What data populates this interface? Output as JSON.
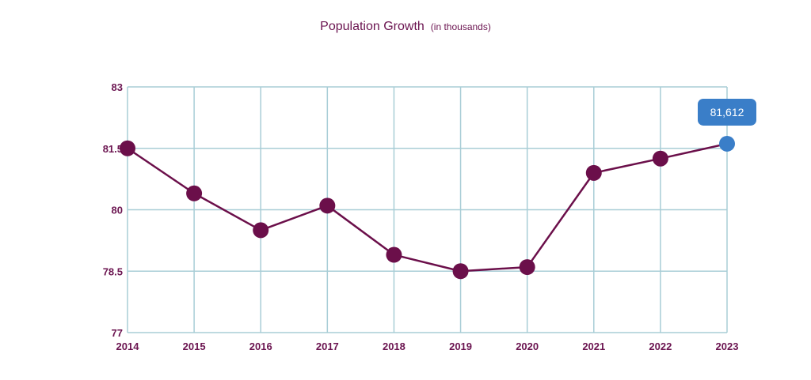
{
  "chart_data": {
    "type": "line",
    "title": "Population Growth",
    "subtitle": "(in thousands)",
    "xlabel": "",
    "ylabel": "",
    "categories": [
      "2014",
      "2015",
      "2016",
      "2017",
      "2018",
      "2019",
      "2020",
      "2021",
      "2022",
      "2023"
    ],
    "series": [
      {
        "values": [
          81.5,
          80.4,
          79.5,
          80.1,
          78.9,
          78.5,
          78.6,
          80.9,
          81.25,
          81.612
        ]
      }
    ],
    "ylim": [
      77,
      83
    ],
    "yticks": [
      "77",
      "78.5",
      "80",
      "81.5",
      "83"
    ],
    "ytick_values": [
      77,
      78.5,
      80,
      81.5,
      83
    ],
    "grid": true,
    "legend": "none",
    "highlight": {
      "index": 9,
      "label": "81,612"
    },
    "colors": {
      "series": "#6b0f4a",
      "grid": "#a8cdd6",
      "highlight": "#3a7ec8",
      "text": "#6b1450"
    }
  }
}
